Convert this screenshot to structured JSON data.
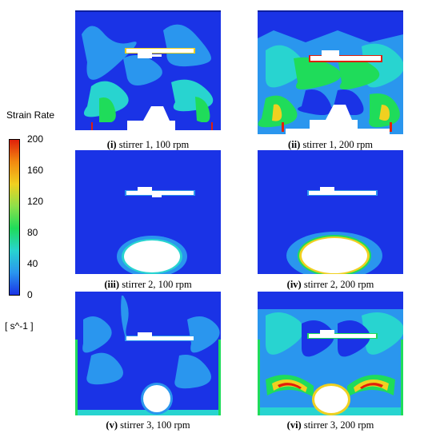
{
  "legend": {
    "title": "Strain Rate",
    "unit": "[ s^-1 ]",
    "ticks": [
      "200",
      "160",
      "120",
      "80",
      "40",
      "0"
    ],
    "colors": [
      "#e0200a",
      "#f28a10",
      "#f0d020",
      "#8ee04a",
      "#1fdc5a",
      "#28d4d0",
      "#2a96ee",
      "#1a33e6"
    ]
  },
  "panels": [
    {
      "tag": "(i)",
      "label": "stirrer 1, 100 rpm"
    },
    {
      "tag": "(ii)",
      "label": "stirrer 1, 200 rpm"
    },
    {
      "tag": "(iii)",
      "label": "stirrer 2, 100 rpm"
    },
    {
      "tag": "(iv)",
      "label": "stirrer 2, 200 rpm"
    },
    {
      "tag": "(v)",
      "label": "stirrer 3, 100 rpm"
    },
    {
      "tag": "(vi)",
      "label": "stirrer 3, 200 rpm"
    }
  ]
}
